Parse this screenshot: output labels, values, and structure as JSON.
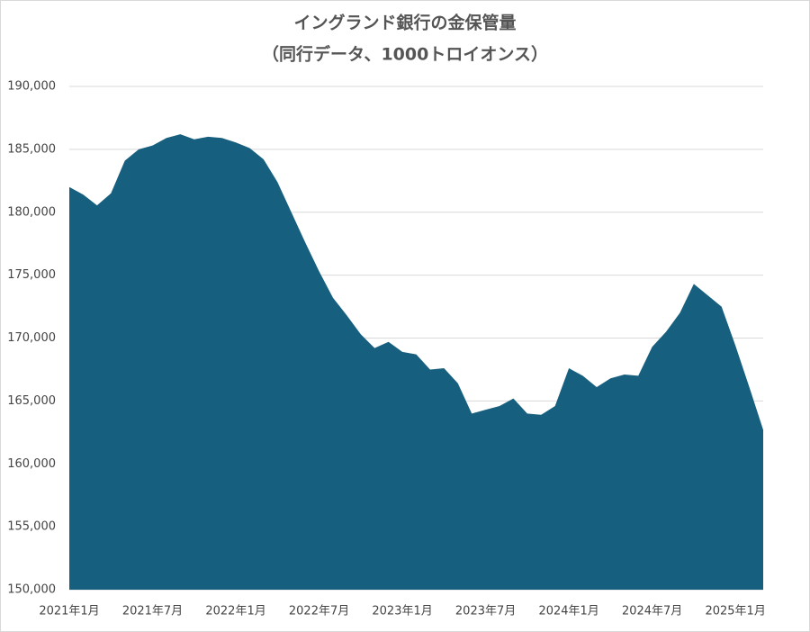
{
  "chart_data": {
    "type": "area",
    "title": "イングランド銀行の金保管量",
    "subtitle": "（同行データ、1000トロイオンス）",
    "categories": [
      "2021年1月",
      null,
      null,
      null,
      null,
      null,
      "2021年7月",
      null,
      null,
      null,
      null,
      null,
      "2022年1月",
      null,
      null,
      null,
      null,
      null,
      "2022年7月",
      null,
      null,
      null,
      null,
      null,
      "2023年1月",
      null,
      null,
      null,
      null,
      null,
      "2023年7月",
      null,
      null,
      null,
      null,
      null,
      "2024年1月",
      null,
      null,
      null,
      null,
      null,
      "2024年7月",
      null,
      null,
      null,
      null,
      null,
      "2025年1月",
      null,
      null
    ],
    "values": [
      182000,
      181400,
      180550,
      181500,
      184100,
      185000,
      185300,
      185900,
      186200,
      185800,
      186000,
      185900,
      185550,
      185100,
      184200,
      182400,
      180000,
      177600,
      175300,
      173200,
      171800,
      170300,
      169200,
      169700,
      168900,
      168700,
      167500,
      167600,
      166400,
      164000,
      164300,
      164600,
      165200,
      164000,
      163900,
      164600,
      167600,
      167000,
      166100,
      166800,
      167100,
      167000,
      169300,
      170500,
      172000,
      174300,
      173400,
      172500,
      169400,
      166100,
      162700
    ],
    "color": "#175f7e",
    "ylim": [
      150000,
      190000
    ],
    "yticks": [
      {
        "value": 150000,
        "label": "150,000"
      },
      {
        "value": 155000,
        "label": "155,000"
      },
      {
        "value": 160000,
        "label": "160,000"
      },
      {
        "value": 165000,
        "label": "165,000"
      },
      {
        "value": 170000,
        "label": "170,000"
      },
      {
        "value": 175000,
        "label": "175,000"
      },
      {
        "value": 180000,
        "label": "180,000"
      },
      {
        "value": 185000,
        "label": "185,000"
      },
      {
        "value": 190000,
        "label": "190,000"
      }
    ],
    "grid": true
  }
}
